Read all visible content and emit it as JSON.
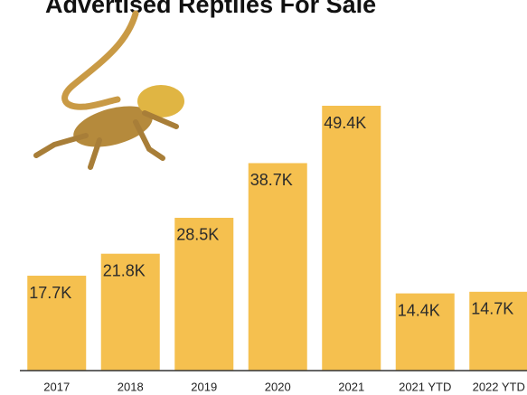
{
  "chart_data": {
    "type": "bar",
    "title": "Advertised Reptiles For Sale",
    "categories": [
      "2017",
      "2018",
      "2019",
      "2020",
      "2021",
      "2021 YTD",
      "2022 YTD"
    ],
    "values": [
      17700,
      21800,
      28500,
      38700,
      49400,
      14400,
      14700
    ],
    "value_labels": [
      "17.7K",
      "21.8K",
      "28.5K",
      "38.7K",
      "49.4K",
      "14.4K",
      "14.7K"
    ],
    "color": "#f5c04f"
  }
}
